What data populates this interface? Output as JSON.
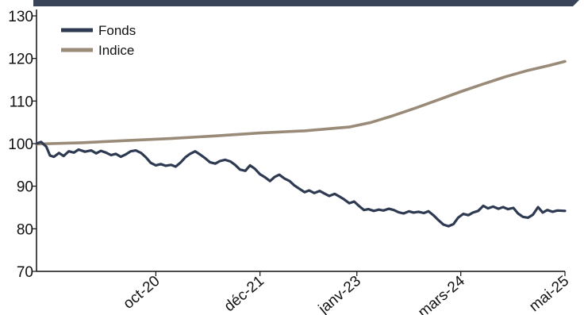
{
  "chart_data": {
    "type": "line",
    "title": "",
    "xlabel": "",
    "ylabel": "",
    "ylim": [
      70,
      130
    ],
    "yticks": [
      70,
      80,
      90,
      100,
      110,
      120,
      130
    ],
    "xrange": [
      "2019-07-01",
      "2025-05-31"
    ],
    "xticks": [
      {
        "label": "oct-20",
        "date": "2020-10-31"
      },
      {
        "label": "déc-21",
        "date": "2021-12-31"
      },
      {
        "label": "janv-23",
        "date": "2023-01-31"
      },
      {
        "label": "mars-24",
        "date": "2024-03-31"
      },
      {
        "label": "mai-25",
        "date": "2025-05-31"
      }
    ],
    "grid": false,
    "legend_position": "top-left",
    "colors": {
      "header_band": "#3a4458",
      "axis": "#111111"
    },
    "series": [
      {
        "name": "Fonds",
        "color": "#2e3a52",
        "points": [
          [
            "2019-07-01",
            100.0
          ],
          [
            "2019-07-20",
            100.4
          ],
          [
            "2019-08-10",
            99.3
          ],
          [
            "2019-08-25",
            97.2
          ],
          [
            "2019-09-10",
            96.9
          ],
          [
            "2019-10-01",
            97.8
          ],
          [
            "2019-10-20",
            97.1
          ],
          [
            "2019-11-10",
            98.2
          ],
          [
            "2019-12-01",
            97.9
          ],
          [
            "2019-12-20",
            98.6
          ],
          [
            "2020-01-15",
            98.1
          ],
          [
            "2020-02-10",
            98.4
          ],
          [
            "2020-03-01",
            97.7
          ],
          [
            "2020-03-20",
            98.3
          ],
          [
            "2020-04-10",
            97.9
          ],
          [
            "2020-05-01",
            97.3
          ],
          [
            "2020-05-20",
            97.6
          ],
          [
            "2020-06-10",
            96.9
          ],
          [
            "2020-07-01",
            97.5
          ],
          [
            "2020-07-20",
            98.2
          ],
          [
            "2020-08-10",
            98.4
          ],
          [
            "2020-09-01",
            97.8
          ],
          [
            "2020-09-20",
            96.8
          ],
          [
            "2020-10-10",
            95.5
          ],
          [
            "2020-10-31",
            94.9
          ],
          [
            "2020-11-20",
            95.2
          ],
          [
            "2020-12-10",
            94.8
          ],
          [
            "2021-01-01",
            95.0
          ],
          [
            "2021-01-20",
            94.6
          ],
          [
            "2021-02-10",
            95.6
          ],
          [
            "2021-03-01",
            96.8
          ],
          [
            "2021-03-20",
            97.6
          ],
          [
            "2021-04-10",
            98.2
          ],
          [
            "2021-05-01",
            97.4
          ],
          [
            "2021-05-20",
            96.6
          ],
          [
            "2021-06-10",
            95.6
          ],
          [
            "2021-07-01",
            95.3
          ],
          [
            "2021-07-20",
            95.9
          ],
          [
            "2021-08-10",
            96.2
          ],
          [
            "2021-09-01",
            95.8
          ],
          [
            "2021-09-20",
            95.0
          ],
          [
            "2021-10-10",
            93.9
          ],
          [
            "2021-11-01",
            93.6
          ],
          [
            "2021-11-20",
            94.9
          ],
          [
            "2021-12-10",
            94.1
          ],
          [
            "2021-12-31",
            92.8
          ],
          [
            "2022-01-20",
            92.1
          ],
          [
            "2022-02-10",
            91.2
          ],
          [
            "2022-03-01",
            92.2
          ],
          [
            "2022-03-20",
            92.7
          ],
          [
            "2022-04-10",
            91.8
          ],
          [
            "2022-05-01",
            91.2
          ],
          [
            "2022-05-20",
            90.2
          ],
          [
            "2022-06-10",
            89.4
          ],
          [
            "2022-07-01",
            88.6
          ],
          [
            "2022-07-20",
            89.0
          ],
          [
            "2022-08-10",
            88.4
          ],
          [
            "2022-09-01",
            88.9
          ],
          [
            "2022-09-20",
            88.3
          ],
          [
            "2022-10-10",
            87.7
          ],
          [
            "2022-11-01",
            88.2
          ],
          [
            "2022-11-20",
            87.6
          ],
          [
            "2022-12-10",
            86.9
          ],
          [
            "2022-12-31",
            86.0
          ],
          [
            "2023-01-20",
            86.4
          ],
          [
            "2023-02-10",
            85.3
          ],
          [
            "2023-03-01",
            84.4
          ],
          [
            "2023-03-20",
            84.6
          ],
          [
            "2023-04-10",
            84.2
          ],
          [
            "2023-05-01",
            84.5
          ],
          [
            "2023-05-20",
            84.3
          ],
          [
            "2023-06-10",
            84.7
          ],
          [
            "2023-07-01",
            84.4
          ],
          [
            "2023-07-20",
            83.9
          ],
          [
            "2023-08-10",
            83.6
          ],
          [
            "2023-09-01",
            84.1
          ],
          [
            "2023-09-20",
            83.8
          ],
          [
            "2023-10-10",
            84.0
          ],
          [
            "2023-11-01",
            83.7
          ],
          [
            "2023-11-20",
            84.1
          ],
          [
            "2023-12-10",
            83.2
          ],
          [
            "2023-12-31",
            82.0
          ],
          [
            "2024-01-20",
            81.0
          ],
          [
            "2024-02-10",
            80.6
          ],
          [
            "2024-03-01",
            81.1
          ],
          [
            "2024-03-20",
            82.6
          ],
          [
            "2024-04-10",
            83.5
          ],
          [
            "2024-05-01",
            83.2
          ],
          [
            "2024-05-20",
            83.8
          ],
          [
            "2024-06-10",
            84.2
          ],
          [
            "2024-07-01",
            85.4
          ],
          [
            "2024-07-20",
            84.8
          ],
          [
            "2024-08-10",
            85.2
          ],
          [
            "2024-09-01",
            84.7
          ],
          [
            "2024-09-20",
            85.1
          ],
          [
            "2024-10-10",
            84.6
          ],
          [
            "2024-11-01",
            84.9
          ],
          [
            "2024-11-20",
            83.6
          ],
          [
            "2024-12-10",
            82.8
          ],
          [
            "2024-12-31",
            82.6
          ],
          [
            "2025-01-20",
            83.3
          ],
          [
            "2025-02-10",
            85.1
          ],
          [
            "2025-03-01",
            83.8
          ],
          [
            "2025-03-20",
            84.4
          ],
          [
            "2025-04-10",
            84.0
          ],
          [
            "2025-04-30",
            84.3
          ],
          [
            "2025-05-31",
            84.2
          ]
        ]
      },
      {
        "name": "Indice",
        "color": "#9a8a78",
        "points": [
          [
            "2019-07-01",
            99.9
          ],
          [
            "2019-12-31",
            100.2
          ],
          [
            "2020-06-30",
            100.7
          ],
          [
            "2020-12-31",
            101.2
          ],
          [
            "2021-06-30",
            101.8
          ],
          [
            "2021-12-31",
            102.5
          ],
          [
            "2022-06-30",
            103.0
          ],
          [
            "2022-12-31",
            103.9
          ],
          [
            "2023-03-31",
            105.0
          ],
          [
            "2023-06-30",
            106.6
          ],
          [
            "2023-09-30",
            108.4
          ],
          [
            "2023-12-31",
            110.3
          ],
          [
            "2024-03-31",
            112.2
          ],
          [
            "2024-06-30",
            114.0
          ],
          [
            "2024-09-30",
            115.7
          ],
          [
            "2024-12-31",
            117.2
          ],
          [
            "2025-03-31",
            118.4
          ],
          [
            "2025-05-31",
            119.3
          ]
        ]
      }
    ]
  }
}
